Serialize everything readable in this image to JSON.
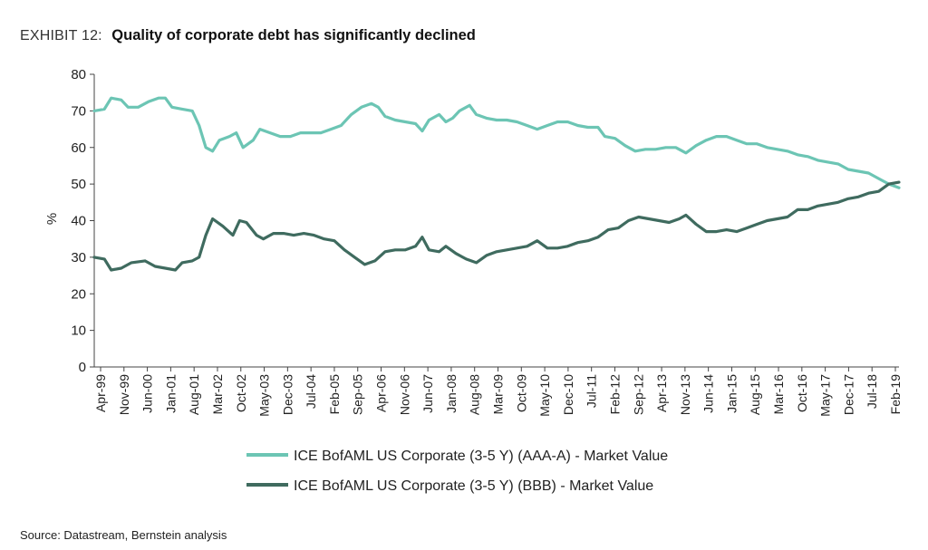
{
  "exhibit": {
    "label": "EXHIBIT 12:",
    "title": "Quality of corporate debt has significantly declined"
  },
  "source": "Source: Datastream, Bernstein analysis",
  "chart_data": {
    "type": "line",
    "title": "Quality of corporate debt has significantly declined",
    "xlabel": "",
    "ylabel": "%",
    "ylim": [
      0,
      80
    ],
    "yticks": [
      0,
      10,
      20,
      30,
      40,
      50,
      60,
      70,
      80
    ],
    "xrange": [
      "1999-04",
      "2019-02"
    ],
    "xticks": [
      "Apr-99",
      "Nov-99",
      "Jun-00",
      "Jan-01",
      "Aug-01",
      "Mar-02",
      "Oct-02",
      "May-03",
      "Dec-03",
      "Jul-04",
      "Feb-05",
      "Sep-05",
      "Apr-06",
      "Nov-06",
      "Jun-07",
      "Jan-08",
      "Aug-08",
      "Mar-09",
      "Oct-09",
      "May-10",
      "Dec-10",
      "Jul-11",
      "Feb-12",
      "Sep-12",
      "Apr-13",
      "Nov-13",
      "Jun-14",
      "Jan-15",
      "Aug-15",
      "Mar-16",
      "Oct-16",
      "May-17",
      "Dec-17",
      "Jul-18",
      "Feb-19"
    ],
    "grid": false,
    "legend_position": "bottom",
    "series": [
      {
        "name": "ICE BofAML US Corporate (3-5 Y) (AAA-A) - Market Value",
        "color": "#6cc5b4",
        "points": [
          [
            "1999-04",
            70
          ],
          [
            "1999-07",
            70.5
          ],
          [
            "1999-09",
            73.5
          ],
          [
            "1999-12",
            73
          ],
          [
            "2000-02",
            71
          ],
          [
            "2000-05",
            71
          ],
          [
            "2000-08",
            72.5
          ],
          [
            "2000-11",
            73.5
          ],
          [
            "2001-01",
            73.5
          ],
          [
            "2001-03",
            71
          ],
          [
            "2001-06",
            70.5
          ],
          [
            "2001-09",
            70
          ],
          [
            "2001-11",
            66
          ],
          [
            "2002-01",
            60
          ],
          [
            "2002-03",
            59
          ],
          [
            "2002-05",
            62
          ],
          [
            "2002-08",
            63
          ],
          [
            "2002-10",
            64
          ],
          [
            "2002-12",
            60
          ],
          [
            "2003-03",
            62
          ],
          [
            "2003-05",
            65
          ],
          [
            "2003-08",
            64
          ],
          [
            "2003-11",
            63
          ],
          [
            "2004-02",
            63
          ],
          [
            "2004-05",
            64
          ],
          [
            "2004-08",
            64
          ],
          [
            "2004-11",
            64
          ],
          [
            "2005-02",
            65
          ],
          [
            "2005-05",
            66
          ],
          [
            "2005-08",
            69
          ],
          [
            "2005-11",
            71
          ],
          [
            "2006-02",
            72
          ],
          [
            "2006-04",
            71
          ],
          [
            "2006-06",
            68.5
          ],
          [
            "2006-09",
            67.5
          ],
          [
            "2006-12",
            67
          ],
          [
            "2007-03",
            66.5
          ],
          [
            "2007-05",
            64.5
          ],
          [
            "2007-07",
            67.5
          ],
          [
            "2007-10",
            69
          ],
          [
            "2007-12",
            67
          ],
          [
            "2008-02",
            68
          ],
          [
            "2008-04",
            70
          ],
          [
            "2008-07",
            71.5
          ],
          [
            "2008-09",
            69
          ],
          [
            "2008-12",
            68
          ],
          [
            "2009-03",
            67.5
          ],
          [
            "2009-06",
            67.5
          ],
          [
            "2009-09",
            67
          ],
          [
            "2009-12",
            66
          ],
          [
            "2010-03",
            65
          ],
          [
            "2010-06",
            66
          ],
          [
            "2010-09",
            67
          ],
          [
            "2010-12",
            67
          ],
          [
            "2011-03",
            66
          ],
          [
            "2011-06",
            65.5
          ],
          [
            "2011-09",
            65.5
          ],
          [
            "2011-11",
            63
          ],
          [
            "2012-02",
            62.5
          ],
          [
            "2012-05",
            60.5
          ],
          [
            "2012-08",
            59
          ],
          [
            "2012-11",
            59.5
          ],
          [
            "2013-02",
            59.5
          ],
          [
            "2013-05",
            60
          ],
          [
            "2013-08",
            60
          ],
          [
            "2013-11",
            58.5
          ],
          [
            "2014-02",
            60.5
          ],
          [
            "2014-05",
            62
          ],
          [
            "2014-08",
            63
          ],
          [
            "2014-11",
            63
          ],
          [
            "2015-02",
            62
          ],
          [
            "2015-05",
            61
          ],
          [
            "2015-08",
            61
          ],
          [
            "2015-11",
            60
          ],
          [
            "2016-02",
            59.5
          ],
          [
            "2016-05",
            59
          ],
          [
            "2016-08",
            58
          ],
          [
            "2016-11",
            57.5
          ],
          [
            "2017-02",
            56.5
          ],
          [
            "2017-05",
            56
          ],
          [
            "2017-08",
            55.5
          ],
          [
            "2017-11",
            54
          ],
          [
            "2018-02",
            53.5
          ],
          [
            "2018-05",
            53
          ],
          [
            "2018-08",
            51.5
          ],
          [
            "2018-11",
            50
          ],
          [
            "2019-02",
            49
          ]
        ]
      },
      {
        "name": "ICE BofAML US Corporate (3-5 Y) (BBB) - Market Value",
        "color": "#3f6b5f",
        "points": [
          [
            "1999-04",
            30
          ],
          [
            "1999-07",
            29.5
          ],
          [
            "1999-09",
            26.5
          ],
          [
            "1999-12",
            27
          ],
          [
            "2000-03",
            28.5
          ],
          [
            "2000-07",
            29
          ],
          [
            "2000-10",
            27.5
          ],
          [
            "2001-01",
            27
          ],
          [
            "2001-04",
            26.5
          ],
          [
            "2001-06",
            28.5
          ],
          [
            "2001-09",
            29
          ],
          [
            "2001-11",
            30
          ],
          [
            "2002-01",
            36
          ],
          [
            "2002-03",
            40.5
          ],
          [
            "2002-06",
            38.5
          ],
          [
            "2002-09",
            36
          ],
          [
            "2002-11",
            40
          ],
          [
            "2003-01",
            39.5
          ],
          [
            "2003-04",
            36
          ],
          [
            "2003-06",
            35
          ],
          [
            "2003-09",
            36.5
          ],
          [
            "2003-12",
            36.5
          ],
          [
            "2004-03",
            36
          ],
          [
            "2004-06",
            36.5
          ],
          [
            "2004-09",
            36
          ],
          [
            "2004-12",
            35
          ],
          [
            "2005-03",
            34.5
          ],
          [
            "2005-06",
            32
          ],
          [
            "2005-09",
            30
          ],
          [
            "2005-12",
            28
          ],
          [
            "2006-03",
            29
          ],
          [
            "2006-06",
            31.5
          ],
          [
            "2006-09",
            32
          ],
          [
            "2006-12",
            32
          ],
          [
            "2007-03",
            33
          ],
          [
            "2007-05",
            35.5
          ],
          [
            "2007-07",
            32
          ],
          [
            "2007-10",
            31.5
          ],
          [
            "2007-12",
            33
          ],
          [
            "2008-03",
            31
          ],
          [
            "2008-06",
            29.5
          ],
          [
            "2008-09",
            28.5
          ],
          [
            "2008-12",
            30.5
          ],
          [
            "2009-03",
            31.5
          ],
          [
            "2009-06",
            32
          ],
          [
            "2009-09",
            32.5
          ],
          [
            "2009-12",
            33
          ],
          [
            "2010-03",
            34.5
          ],
          [
            "2010-06",
            32.5
          ],
          [
            "2010-09",
            32.5
          ],
          [
            "2010-12",
            33
          ],
          [
            "2011-03",
            34
          ],
          [
            "2011-06",
            34.5
          ],
          [
            "2011-09",
            35.5
          ],
          [
            "2011-12",
            37.5
          ],
          [
            "2012-03",
            38
          ],
          [
            "2012-06",
            40
          ],
          [
            "2012-09",
            41
          ],
          [
            "2012-12",
            40.5
          ],
          [
            "2013-03",
            40
          ],
          [
            "2013-06",
            39.5
          ],
          [
            "2013-09",
            40.5
          ],
          [
            "2013-11",
            41.5
          ],
          [
            "2014-02",
            39
          ],
          [
            "2014-05",
            37
          ],
          [
            "2014-08",
            37
          ],
          [
            "2014-11",
            37.5
          ],
          [
            "2015-02",
            37
          ],
          [
            "2015-05",
            38
          ],
          [
            "2015-08",
            39
          ],
          [
            "2015-11",
            40
          ],
          [
            "2016-02",
            40.5
          ],
          [
            "2016-05",
            41
          ],
          [
            "2016-08",
            43
          ],
          [
            "2016-11",
            43
          ],
          [
            "2017-02",
            44
          ],
          [
            "2017-05",
            44.5
          ],
          [
            "2017-08",
            45
          ],
          [
            "2017-11",
            46
          ],
          [
            "2018-02",
            46.5
          ],
          [
            "2018-05",
            47.5
          ],
          [
            "2018-08",
            48
          ],
          [
            "2018-11",
            50
          ],
          [
            "2019-02",
            50.5
          ]
        ]
      }
    ]
  }
}
